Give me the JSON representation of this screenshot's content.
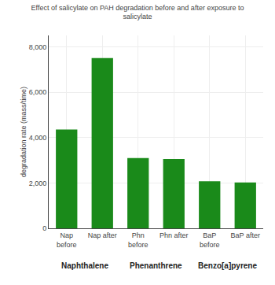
{
  "chart_data": {
    "type": "bar",
    "title": "Effect of salicylate on PAH degradation before and after exposure to\nsalicylate",
    "ylabel": "degradation rate (mass/time)",
    "categories": [
      "Nap\nbefore",
      "Nap after",
      "Phn\nbefore",
      "Phn after",
      "BaP\nbefore",
      "BaP after"
    ],
    "values": [
      4350,
      7500,
      3100,
      3050,
      2070,
      2020
    ],
    "color": "#1a8a1a",
    "ylim": [
      0,
      8500
    ],
    "yticks": [
      0,
      {
        "value": 2000,
        "label": "2,000"
      },
      {
        "value": 4000,
        "label": "4,000"
      },
      {
        "value": 6000,
        "label": "6,000"
      },
      {
        "value": 8000,
        "label": "8,000"
      }
    ],
    "grid": true,
    "annotations": [
      "Naphthalene",
      "Phenanthrene",
      "Benzo[a]pyrene"
    ]
  }
}
